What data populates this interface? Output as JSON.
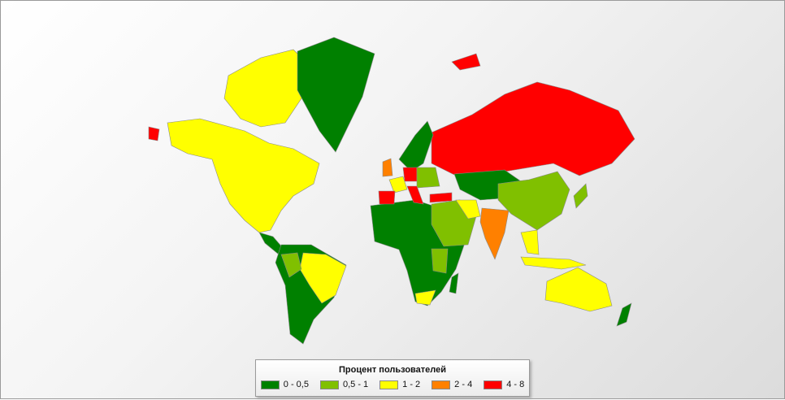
{
  "legend": {
    "title": "Процент пользователей",
    "items": [
      {
        "label": "0 - 0,5",
        "color": "#008000"
      },
      {
        "label": "0,5 - 1",
        "color": "#80c000"
      },
      {
        "label": "1 - 2",
        "color": "#ffff00"
      },
      {
        "label": "2 - 4",
        "color": "#ff8000"
      },
      {
        "label": "4 - 8",
        "color": "#ff0000"
      }
    ]
  },
  "regions": [
    {
      "name": "north-america",
      "class": "1 - 2"
    },
    {
      "name": "greenland",
      "class": "0 - 0,5"
    },
    {
      "name": "central-america",
      "class": "0 - 0,5"
    },
    {
      "name": "south-america",
      "class": "0 - 0,5"
    },
    {
      "name": "brazil",
      "class": "1 - 2"
    },
    {
      "name": "africa",
      "class": "0 - 0,5"
    },
    {
      "name": "south-africa",
      "class": "1 - 2"
    },
    {
      "name": "russia",
      "class": "4 - 8"
    },
    {
      "name": "central-asia",
      "class": "0 - 0,5"
    },
    {
      "name": "china",
      "class": "0,5 - 1"
    },
    {
      "name": "india",
      "class": "2 - 4"
    },
    {
      "name": "middle-east",
      "class": "0,5 - 1"
    },
    {
      "name": "australia",
      "class": "1 - 2"
    },
    {
      "name": "spain",
      "class": "4 - 8"
    },
    {
      "name": "france",
      "class": "1 - 2"
    },
    {
      "name": "uk",
      "class": "2 - 4"
    },
    {
      "name": "germany",
      "class": "4 - 8"
    },
    {
      "name": "turkey",
      "class": "4 - 8"
    },
    {
      "name": "scandinavia",
      "class": "0 - 0,5"
    }
  ]
}
